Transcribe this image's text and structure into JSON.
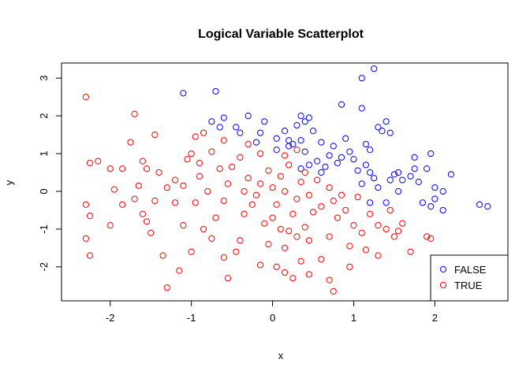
{
  "chart_data": {
    "type": "scatter",
    "title": "Logical Variable Scatterplot",
    "xlabel": "x",
    "ylabel": "y",
    "xlim": [
      -2.6,
      2.9
    ],
    "ylim": [
      -2.9,
      3.4
    ],
    "xticks": [
      -2,
      -1,
      0,
      1,
      2
    ],
    "yticks": [
      -2,
      -1,
      0,
      1,
      2,
      3
    ],
    "grid": false,
    "legend": {
      "position": "bottom-right"
    },
    "series": [
      {
        "name": "FALSE",
        "color": "#0000ff",
        "marker": "open-circle",
        "points": [
          [
            -1.1,
            2.6
          ],
          [
            -0.7,
            2.65
          ],
          [
            1.1,
            3.0
          ],
          [
            1.25,
            3.25
          ],
          [
            1.1,
            2.2
          ],
          [
            0.85,
            2.3
          ],
          [
            -0.6,
            1.95
          ],
          [
            -0.3,
            2.0
          ],
          [
            -0.75,
            1.85
          ],
          [
            -0.65,
            1.7
          ],
          [
            -0.45,
            1.7
          ],
          [
            -0.4,
            1.55
          ],
          [
            -0.1,
            1.85
          ],
          [
            0.15,
            1.6
          ],
          [
            0.35,
            2.0
          ],
          [
            0.45,
            1.95
          ],
          [
            0.3,
            1.75
          ],
          [
            0.4,
            1.85
          ],
          [
            0.5,
            1.6
          ],
          [
            0.35,
            1.35
          ],
          [
            0.2,
            1.35
          ],
          [
            0.25,
            1.25
          ],
          [
            0.05,
            1.4
          ],
          [
            -0.15,
            1.55
          ],
          [
            -0.2,
            1.3
          ],
          [
            0.6,
            1.3
          ],
          [
            0.75,
            1.2
          ],
          [
            0.9,
            1.4
          ],
          [
            0.95,
            1.05
          ],
          [
            1.15,
            1.25
          ],
          [
            1.2,
            1.1
          ],
          [
            1.35,
            1.6
          ],
          [
            1.4,
            1.85
          ],
          [
            1.45,
            1.55
          ],
          [
            1.3,
            1.7
          ],
          [
            0.6,
            0.5
          ],
          [
            0.65,
            0.65
          ],
          [
            0.55,
            0.8
          ],
          [
            0.7,
            0.95
          ],
          [
            0.8,
            0.75
          ],
          [
            0.85,
            0.9
          ],
          [
            1.0,
            0.85
          ],
          [
            1.05,
            0.55
          ],
          [
            1.15,
            0.7
          ],
          [
            1.2,
            0.5
          ],
          [
            1.25,
            0.35
          ],
          [
            1.1,
            0.2
          ],
          [
            1.3,
            0.1
          ],
          [
            1.45,
            0.3
          ],
          [
            1.5,
            0.45
          ],
          [
            1.55,
            0.5
          ],
          [
            1.6,
            0.3
          ],
          [
            1.7,
            0.4
          ],
          [
            1.75,
            0.6
          ],
          [
            1.75,
            0.9
          ],
          [
            1.8,
            0.25
          ],
          [
            1.9,
            0.6
          ],
          [
            1.95,
            1.0
          ],
          [
            2.0,
            0.1
          ],
          [
            2.0,
            -0.2
          ],
          [
            2.1,
            0.0
          ],
          [
            2.2,
            0.45
          ],
          [
            2.1,
            -0.5
          ],
          [
            1.95,
            -0.4
          ],
          [
            1.85,
            -0.3
          ],
          [
            1.55,
            0.0
          ],
          [
            1.4,
            -0.3
          ],
          [
            1.2,
            -0.3
          ],
          [
            2.55,
            -0.35
          ],
          [
            2.65,
            -0.4
          ],
          [
            0.05,
            1.1
          ],
          [
            0.2,
            1.2
          ],
          [
            0.4,
            1.05
          ],
          [
            0.45,
            0.7
          ],
          [
            0.35,
            0.6
          ]
        ]
      },
      {
        "name": "TRUE",
        "color": "#ff0000",
        "marker": "open-circle",
        "points": [
          [
            -2.3,
            2.5
          ],
          [
            -1.7,
            2.05
          ],
          [
            -1.75,
            1.3
          ],
          [
            -1.85,
            0.6
          ],
          [
            -2.15,
            0.8
          ],
          [
            -2.25,
            0.75
          ],
          [
            -2.0,
            0.6
          ],
          [
            -1.95,
            0.05
          ],
          [
            -2.3,
            -0.35
          ],
          [
            -2.25,
            -0.65
          ],
          [
            -2.3,
            -1.25
          ],
          [
            -2.25,
            -1.7
          ],
          [
            -2.0,
            -0.9
          ],
          [
            -1.85,
            -0.35
          ],
          [
            -1.6,
            -0.6
          ],
          [
            -1.55,
            -0.8
          ],
          [
            -1.5,
            -1.1
          ],
          [
            -1.45,
            -0.25
          ],
          [
            -1.55,
            0.6
          ],
          [
            -1.6,
            0.8
          ],
          [
            -1.45,
            1.5
          ],
          [
            -1.35,
            -1.7
          ],
          [
            -1.3,
            -2.55
          ],
          [
            -1.15,
            -2.1
          ],
          [
            -1.0,
            -1.6
          ],
          [
            -1.1,
            -0.9
          ],
          [
            -0.95,
            -0.3
          ],
          [
            -0.9,
            0.4
          ],
          [
            -1.05,
            0.85
          ],
          [
            -1.2,
            0.3
          ],
          [
            -1.3,
            0.1
          ],
          [
            -1.0,
            1.0
          ],
          [
            -0.95,
            1.45
          ],
          [
            -0.85,
            1.55
          ],
          [
            -0.75,
            1.05
          ],
          [
            -0.65,
            0.6
          ],
          [
            -0.55,
            0.2
          ],
          [
            -0.6,
            -0.25
          ],
          [
            -0.7,
            -0.7
          ],
          [
            -0.75,
            -1.25
          ],
          [
            -0.6,
            -1.75
          ],
          [
            -0.55,
            -2.3
          ],
          [
            -0.4,
            -1.3
          ],
          [
            -0.35,
            -0.6
          ],
          [
            -0.2,
            -0.1
          ],
          [
            -0.3,
            0.35
          ],
          [
            -0.4,
            0.9
          ],
          [
            -0.3,
            1.25
          ],
          [
            -0.15,
            1.0
          ],
          [
            -0.05,
            0.55
          ],
          [
            0.0,
            0.1
          ],
          [
            0.05,
            -0.35
          ],
          [
            -0.1,
            -0.85
          ],
          [
            -0.05,
            -1.4
          ],
          [
            -0.15,
            -1.95
          ],
          [
            0.05,
            -2.0
          ],
          [
            0.15,
            -1.5
          ],
          [
            0.2,
            -1.05
          ],
          [
            0.25,
            -0.6
          ],
          [
            0.3,
            -0.2
          ],
          [
            0.35,
            0.25
          ],
          [
            0.2,
            0.7
          ],
          [
            0.15,
            0.95
          ],
          [
            0.3,
            1.1
          ],
          [
            0.1,
            0.4
          ],
          [
            0.45,
            -0.1
          ],
          [
            0.5,
            -0.55
          ],
          [
            0.4,
            -0.95
          ],
          [
            0.45,
            -1.3
          ],
          [
            0.35,
            -1.85
          ],
          [
            0.15,
            -2.15
          ],
          [
            0.25,
            -2.3
          ],
          [
            0.45,
            -2.2
          ],
          [
            0.7,
            -2.35
          ],
          [
            0.75,
            -2.65
          ],
          [
            0.6,
            -1.8
          ],
          [
            0.7,
            -1.2
          ],
          [
            0.8,
            -0.7
          ],
          [
            0.75,
            -0.25
          ],
          [
            0.7,
            0.1
          ],
          [
            0.85,
            -0.1
          ],
          [
            0.9,
            -0.5
          ],
          [
            1.0,
            -0.9
          ],
          [
            0.95,
            -1.45
          ],
          [
            1.1,
            -1.1
          ],
          [
            1.2,
            -0.6
          ],
          [
            1.05,
            -0.15
          ],
          [
            1.3,
            -0.9
          ],
          [
            1.4,
            -1.0
          ],
          [
            1.5,
            -1.2
          ],
          [
            1.3,
            -1.7
          ],
          [
            1.15,
            -1.55
          ],
          [
            0.95,
            -2.0
          ],
          [
            1.6,
            -0.85
          ],
          [
            1.55,
            -1.05
          ],
          [
            1.7,
            -1.6
          ],
          [
            1.9,
            -1.2
          ],
          [
            1.95,
            -1.25
          ],
          [
            1.45,
            -0.5
          ],
          [
            -0.8,
            0.0
          ],
          [
            -1.2,
            -0.3
          ],
          [
            -1.4,
            0.5
          ],
          [
            -1.65,
            0.15
          ],
          [
            -1.7,
            -0.2
          ],
          [
            -0.5,
            0.65
          ],
          [
            -0.25,
            -0.35
          ],
          [
            0.55,
            0.3
          ],
          [
            0.6,
            -0.4
          ],
          [
            -0.85,
            -1.0
          ],
          [
            -0.45,
            -1.6
          ],
          [
            0.0,
            -0.7
          ],
          [
            0.3,
            -1.2
          ],
          [
            -0.6,
            1.35
          ],
          [
            -0.9,
            0.75
          ],
          [
            -1.1,
            0.15
          ],
          [
            -0.35,
            0.0
          ],
          [
            0.15,
            0.0
          ],
          [
            0.4,
            0.5
          ],
          [
            -0.15,
            0.2
          ],
          [
            0.1,
            -1.0
          ]
        ]
      }
    ]
  }
}
